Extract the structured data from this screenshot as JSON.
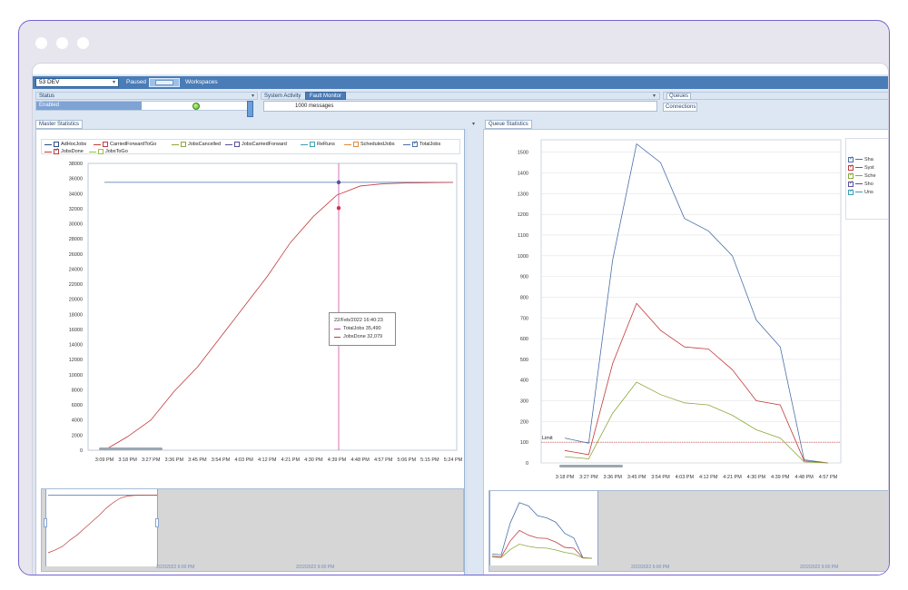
{
  "toolbar": {
    "environment": "53 DEV",
    "paused_label": "Paused",
    "workspaces_label": "Workspaces"
  },
  "status_panel": {
    "title": "Status",
    "state": "Enabled"
  },
  "activity_panel": {
    "title": "System Activity",
    "active_tab": "Fault Monitor",
    "message_count": "1000 messages"
  },
  "queues_panel": {
    "title": "Queues",
    "tab": "Connections"
  },
  "master": {
    "tab": "Master Statistics",
    "legend": [
      {
        "label": "AdHocJobs",
        "color": "#2c4e86",
        "checked": false
      },
      {
        "label": "CarriedForwardToGo",
        "color": "#c23b3b",
        "checked": false
      },
      {
        "label": "JobsCancelled",
        "color": "#8ba83d",
        "checked": false
      },
      {
        "label": "JobsCarriedForward",
        "color": "#5a4f9a",
        "checked": false
      },
      {
        "label": "ReRuns",
        "color": "#3c9cb0",
        "checked": false
      },
      {
        "label": "ScheduledJobs",
        "color": "#e08a3a",
        "checked": false
      },
      {
        "label": "TotalJobs",
        "color": "#4a6fa8",
        "checked": true
      },
      {
        "label": "JobsDone",
        "color": "#c23b3b",
        "checked": true
      },
      {
        "label": "JobsToGo",
        "color": "#9bbf4a",
        "checked": false
      }
    ],
    "tooltip": {
      "date": "22/Feb/2022 16:40:23",
      "total": "TotalJobs 35,490",
      "done": "JobsDone 32,079"
    },
    "overview_dates": [
      "2/22/2022 6:00 PM",
      "2/22/2022 9:00 PM"
    ]
  },
  "queue": {
    "tab": "Queue Statistics",
    "legend": [
      {
        "label": "Sha",
        "color": "#4a6fa8"
      },
      {
        "label": "Syst",
        "color": "#c23b3b"
      },
      {
        "label": "Sche",
        "color": "#8ba83d"
      },
      {
        "label": "Sho",
        "color": "#5a4f9a"
      },
      {
        "label": "Uns",
        "color": "#3c9cb0"
      }
    ],
    "limit_label": "Limit",
    "overview_dates": [
      "2/22/2022 6:00 PM",
      "2/22/2022 9:00 PM"
    ]
  },
  "colors": {
    "accent": "#4a7cb7",
    "total": "#4a6fa8",
    "done": "#c23b3b",
    "third": "#8ba83d",
    "limit": "#c23b3b",
    "cursor": "#c2379b"
  },
  "chart_data": [
    {
      "type": "line",
      "title": "Master Statistics",
      "x": [
        "3:09 PM",
        "3:18 PM",
        "3:27 PM",
        "3:36 PM",
        "3:45 PM",
        "3:54 PM",
        "4:03 PM",
        "4:12 PM",
        "4:21 PM",
        "4:30 PM",
        "4:39 PM",
        "4:48 PM",
        "4:57 PM",
        "5:06 PM",
        "5:15 PM",
        "5:24 PM"
      ],
      "yticks": [
        0,
        2000,
        4000,
        6000,
        8000,
        10000,
        12000,
        14000,
        16000,
        18000,
        20000,
        22000,
        24000,
        26000,
        28000,
        30000,
        32000,
        34000,
        36000,
        38000
      ],
      "ylim": [
        0,
        38000
      ],
      "grid": false,
      "series": [
        {
          "name": "TotalJobs",
          "values": [
            35490,
            35490,
            35490,
            35490,
            35490,
            35490,
            35490,
            35490,
            35490,
            35490,
            35490,
            35490,
            35490,
            35490,
            35490,
            35490
          ]
        },
        {
          "name": "JobsDone",
          "values": [
            0,
            1800,
            4000,
            7800,
            11000,
            15000,
            19000,
            23000,
            27500,
            31000,
            33800,
            35000,
            35300,
            35400,
            35450,
            35490
          ]
        }
      ]
    },
    {
      "type": "line",
      "title": "Queue Statistics",
      "x": [
        "3:18 PM",
        "3:27 PM",
        "3:36 PM",
        "3:45 PM",
        "3:54 PM",
        "4:03 PM",
        "4:12 PM",
        "4:21 PM",
        "4:30 PM",
        "4:39 PM",
        "4:48 PM",
        "4:57 PM"
      ],
      "yticks": [
        0,
        100,
        200,
        300,
        400,
        500,
        600,
        700,
        800,
        900,
        1000,
        1100,
        1200,
        1300,
        1400,
        1500
      ],
      "ylim": [
        0,
        1560
      ],
      "grid": true,
      "limit": 100,
      "series": [
        {
          "name": "Sha",
          "values": [
            120,
            95,
            980,
            1540,
            1450,
            1180,
            1120,
            1000,
            690,
            560,
            15,
            0
          ]
        },
        {
          "name": "Syst",
          "values": [
            60,
            40,
            480,
            770,
            640,
            560,
            550,
            450,
            300,
            280,
            10,
            0
          ]
        },
        {
          "name": "Sche",
          "values": [
            30,
            20,
            240,
            390,
            330,
            290,
            280,
            230,
            160,
            120,
            5,
            0
          ]
        }
      ]
    }
  ]
}
